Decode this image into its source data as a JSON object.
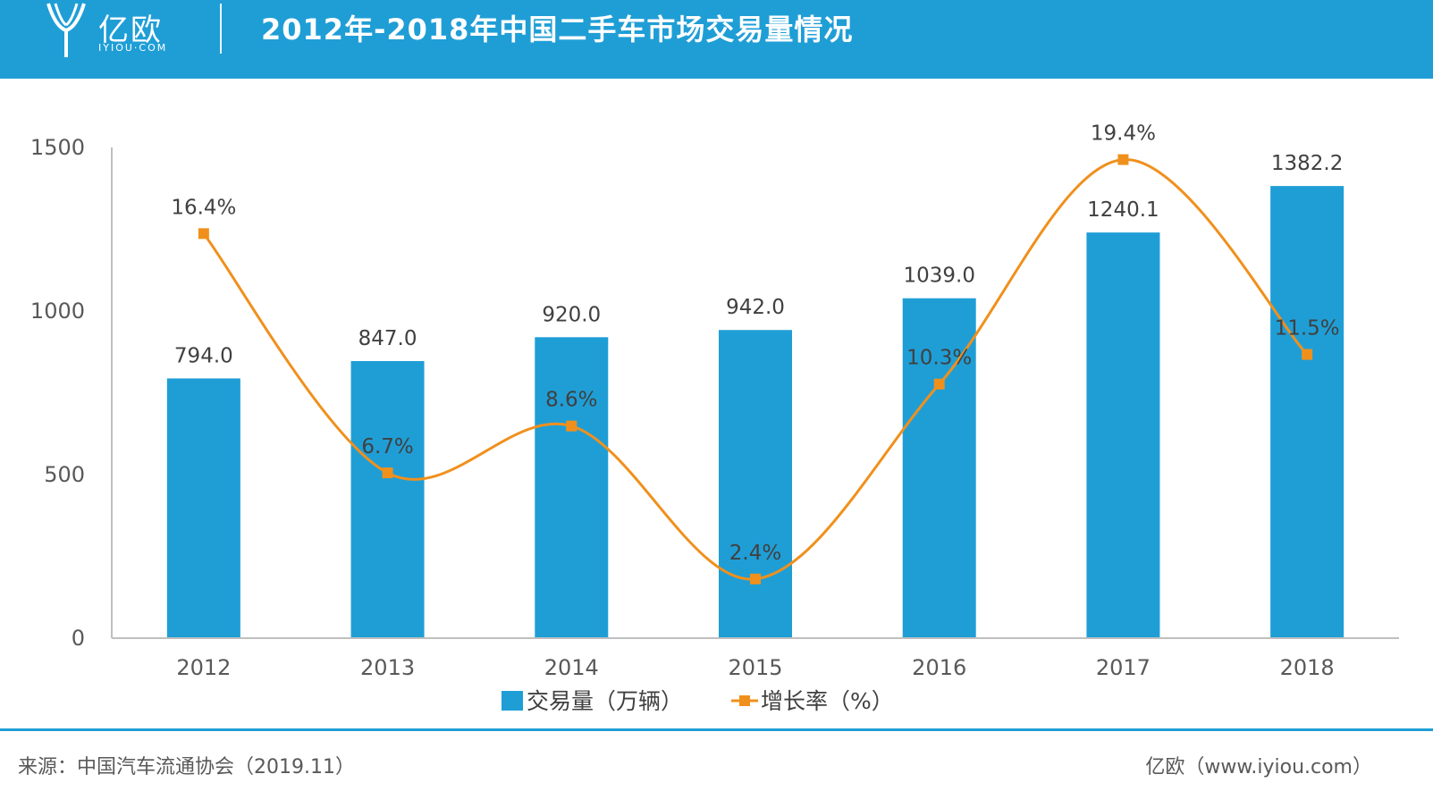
{
  "header": {
    "logo_text": "亿欧",
    "logo_domain": "IYIOU·COM",
    "title": "2012年-2018年中国二手车市场交易量情况"
  },
  "colors": {
    "header_bg": "#1f9ed6",
    "bar": "#1f9ed6",
    "line": "#f0901c",
    "axis": "#bfbfbf"
  },
  "chart_data": {
    "type": "bar",
    "title": "2012年-2018年中国二手车市场交易量情况",
    "categories": [
      "2012",
      "2013",
      "2014",
      "2015",
      "2016",
      "2017",
      "2018"
    ],
    "series": [
      {
        "name": "交易量（万辆）",
        "type": "bar",
        "values": [
          794.0,
          847.0,
          920.0,
          942.0,
          1039.0,
          1240.1,
          1382.2
        ],
        "labels": [
          "794.0",
          "847.0",
          "920.0",
          "942.0",
          "1039.0",
          "1240.1",
          "1382.2"
        ]
      },
      {
        "name": "增长率（%）",
        "type": "line",
        "smooth": true,
        "marker": "square",
        "values": [
          16.4,
          6.7,
          8.6,
          2.4,
          10.3,
          19.4,
          11.5
        ],
        "labels": [
          "16.4%",
          "6.7%",
          "8.6%",
          "2.4%",
          "10.3%",
          "19.4%",
          "11.5%"
        ]
      }
    ],
    "y_axis": {
      "min": 0,
      "max": 1500,
      "ticks": [
        "0",
        "500",
        "1000",
        "1500"
      ]
    },
    "secondary_axis_hidden": true,
    "grid": false,
    "legend_position": "bottom"
  },
  "footer": {
    "source": "来源：中国汽车流通协会（2019.11）",
    "site": "亿欧（www.iyiou.com）"
  }
}
